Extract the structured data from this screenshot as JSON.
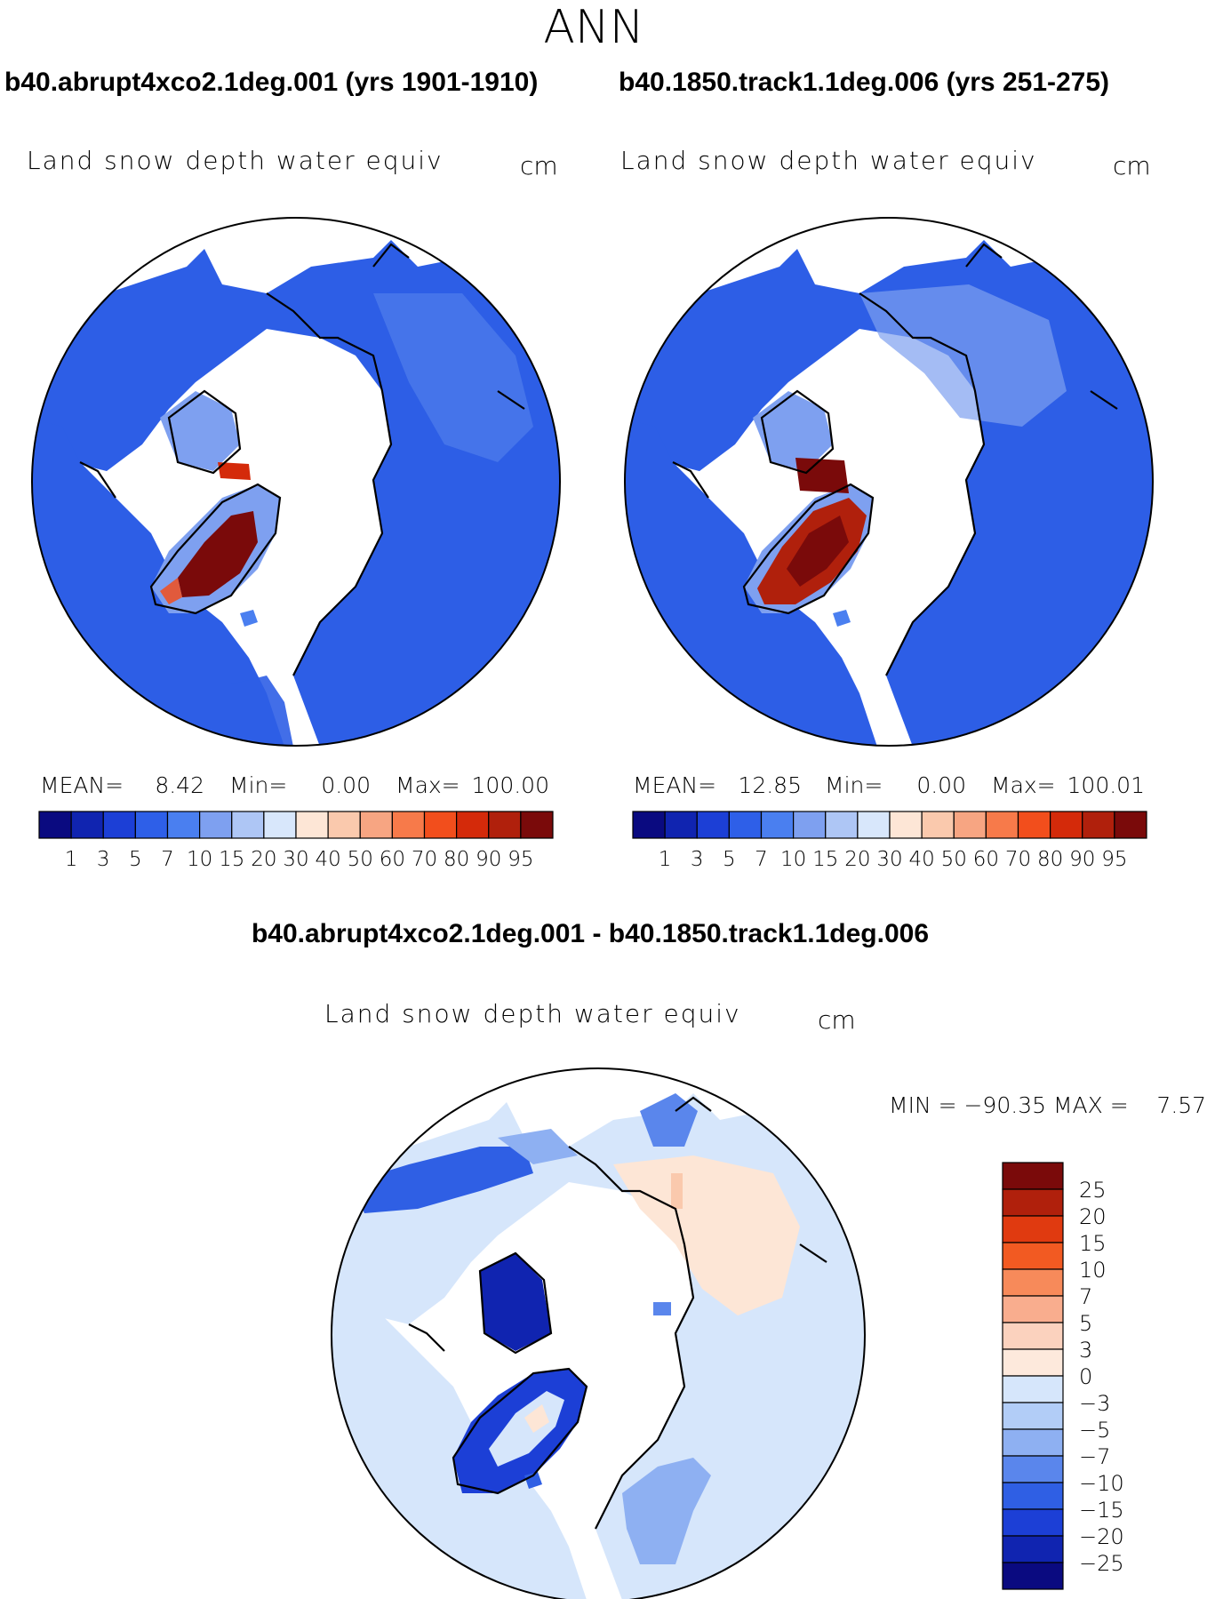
{
  "figure": {
    "season": "ANN",
    "left_title": "b40.abrupt4xco2.1deg.001 (yrs 1901-1910)",
    "right_title": "b40.1850.track1.1deg.006 (yrs 251-275)",
    "diff_title": "b40.abrupt4xco2.1deg.001 - b40.1850.track1.1deg.006"
  },
  "panels": [
    {
      "variable": "Land snow depth water equiv",
      "units": "cm",
      "stats": {
        "mean_label": "MEAN=",
        "mean": "8.42",
        "min_label": "Min=",
        "min": "0.00",
        "max_label": "Max=",
        "max": "100.00"
      }
    },
    {
      "variable": "Land snow depth water equiv",
      "units": "cm",
      "stats": {
        "mean_label": "MEAN=",
        "mean": "12.85",
        "min_label": "Min=",
        "min": "0.00",
        "max_label": "Max=",
        "max": "100.01"
      }
    }
  ],
  "diff_panel": {
    "variable": "Land snow depth water equiv",
    "units": "cm",
    "minmax": "MIN = −90.35 MAX =    7.57"
  },
  "colorbar": {
    "levels": [
      "1",
      "3",
      "5",
      "7",
      "10",
      "15",
      "20",
      "30",
      "40",
      "50",
      "60",
      "70",
      "80",
      "90",
      "95"
    ],
    "colors": [
      "#0a0a80",
      "#1024b0",
      "#1c3fd6",
      "#2e5fe8",
      "#4a7ff0",
      "#7ea0f0",
      "#aec6f5",
      "#d8e7fb",
      "#fde6d6",
      "#fac9ad",
      "#f7a582",
      "#f77a4a",
      "#f24e1c",
      "#d42a0a",
      "#b0200c",
      "#7a0a0a"
    ]
  },
  "diff_colorbar": {
    "levels": [
      "25",
      "20",
      "15",
      "10",
      "7",
      "5",
      "3",
      "0",
      "−3",
      "−5",
      "−7",
      "−10",
      "−15",
      "−20",
      "−25"
    ],
    "colors": [
      "#7a0a0a",
      "#b0200c",
      "#e03a10",
      "#f25a22",
      "#f78a5a",
      "#f9ad8e",
      "#fbd2be",
      "#fde9dc",
      "#d6e6fb",
      "#b2cdf7",
      "#8eb0f2",
      "#5a86ec",
      "#2f5fe4",
      "#1c3fd6",
      "#1024b0",
      "#0a0a80"
    ]
  },
  "colors": {
    "land_fill": "#2d5ee6",
    "diff_background": "#d6e6fb",
    "ice_cap": "#b8160a"
  }
}
